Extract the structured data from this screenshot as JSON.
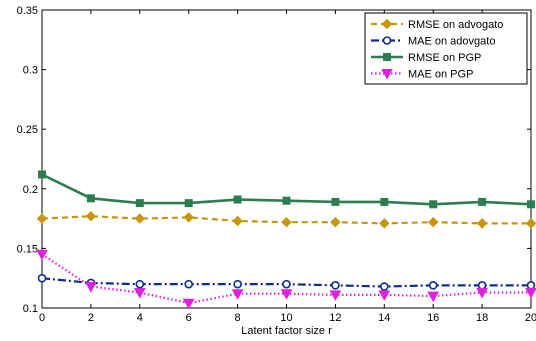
{
  "chart_data": {
    "type": "line",
    "title": "",
    "xlabel": "Latent factor size r",
    "ylabel": "",
    "xlim": [
      0,
      20
    ],
    "ylim": [
      0.1,
      0.35
    ],
    "xticks": [
      0,
      2,
      4,
      6,
      8,
      10,
      12,
      14,
      16,
      18,
      20
    ],
    "yticks": [
      0.1,
      0.15,
      0.2,
      0.25,
      0.3,
      0.35
    ],
    "ytick_labels": [
      "0.1",
      "0.15",
      "0.2",
      "0.25",
      "0.3",
      "0.35"
    ],
    "grid": false,
    "legend_position": "top-right",
    "x": [
      0,
      2,
      4,
      6,
      8,
      10,
      12,
      14,
      16,
      18,
      20
    ],
    "series": [
      {
        "name": "RMSE on advogato",
        "values": [
          0.175,
          0.177,
          0.175,
          0.176,
          0.173,
          0.172,
          0.172,
          0.171,
          0.172,
          0.171,
          0.171
        ],
        "color": "#c8960c",
        "line_style": "dashed",
        "marker": "diamond"
      },
      {
        "name": "MAE on adovgato",
        "values": [
          0.125,
          0.121,
          0.12,
          0.12,
          0.12,
          0.12,
          0.119,
          0.118,
          0.119,
          0.119,
          0.119
        ],
        "color": "#0b2d8c",
        "line_style": "dashdot",
        "marker": "circle-open"
      },
      {
        "name": "RMSE on PGP",
        "values": [
          0.212,
          0.192,
          0.188,
          0.188,
          0.191,
          0.19,
          0.189,
          0.189,
          0.187,
          0.189,
          0.187
        ],
        "color": "#2e7d4f",
        "line_style": "solid",
        "marker": "square"
      },
      {
        "name": "MAE on PGP",
        "values": [
          0.145,
          0.118,
          0.113,
          0.104,
          0.112,
          0.112,
          0.111,
          0.111,
          0.11,
          0.113,
          0.113
        ],
        "color": "#e020e0",
        "line_style": "dotted",
        "marker": "triangle-down"
      }
    ]
  }
}
